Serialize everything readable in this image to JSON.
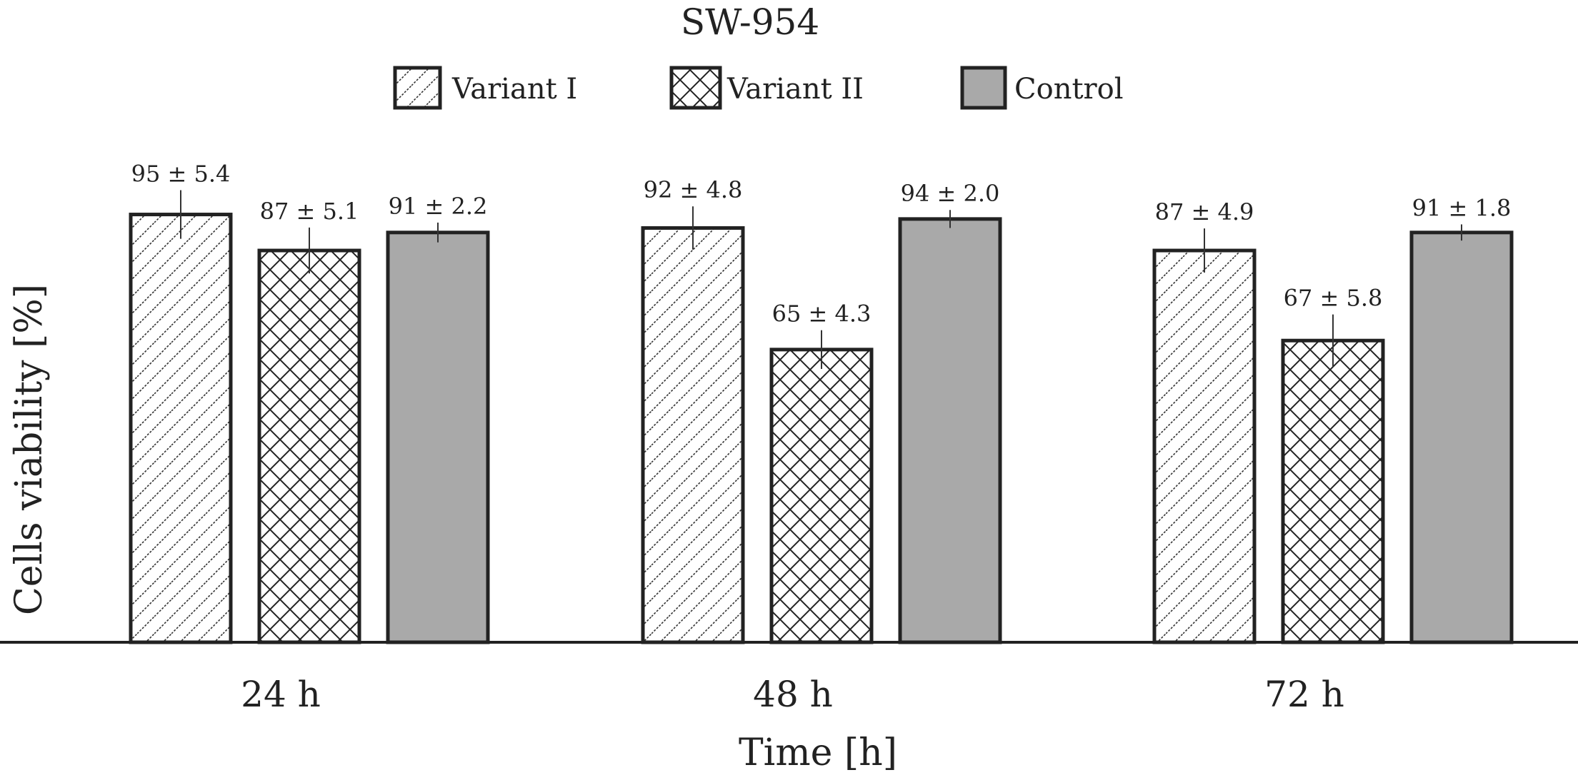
{
  "chart_data": {
    "type": "bar",
    "title": "SW-954",
    "xlabel": "Time [h]",
    "ylabel": "Cells viability [%]",
    "ylim": [
      0,
      100
    ],
    "grid": false,
    "legend_position": "top-center",
    "categories": [
      "24 h",
      "48 h",
      "72 h"
    ],
    "series": [
      {
        "name": "Variant I",
        "pattern": "diagonal-hatch",
        "fill": "#ffffff",
        "values": [
          95,
          92,
          87
        ],
        "errors": [
          5.4,
          4.8,
          4.9
        ],
        "labels": [
          "95 ± 5.4",
          "92 ± 4.8",
          "87 ± 4.9"
        ]
      },
      {
        "name": "Variant II",
        "pattern": "cross-hatch",
        "fill": "#ffffff",
        "values": [
          87,
          65,
          67
        ],
        "errors": [
          5.1,
          4.3,
          5.8
        ],
        "labels": [
          "87 ± 5.1",
          "65 ± 4.3",
          "67 ± 5.8"
        ]
      },
      {
        "name": "Control",
        "pattern": "solid",
        "fill": "#a9a9a9",
        "values": [
          91,
          94,
          91
        ],
        "errors": [
          2.2,
          2.0,
          1.8
        ],
        "labels": [
          "91 ± 2.2",
          "94 ± 2.0",
          "91 ± 1.8"
        ]
      }
    ]
  }
}
